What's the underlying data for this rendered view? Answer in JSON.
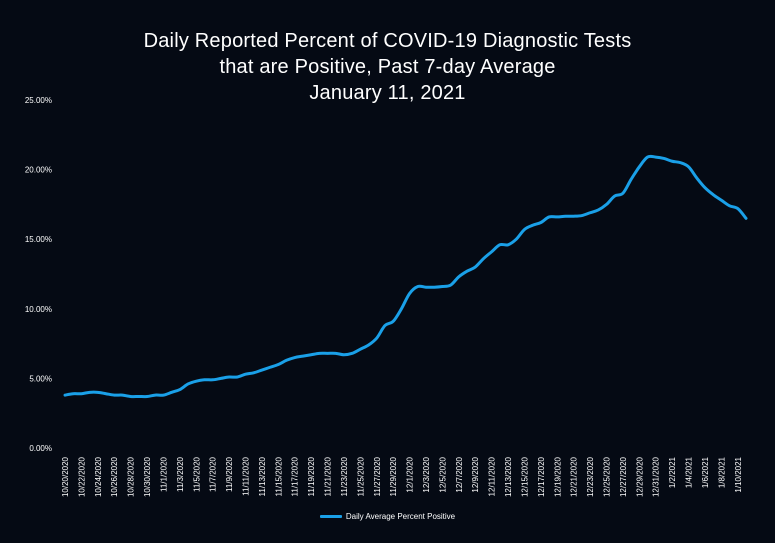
{
  "chart_data": {
    "type": "line",
    "title_lines": [
      "Daily Reported Percent of COVID-19 Diagnostic Tests",
      "that are Positive, Past 7-day Average",
      "January 11, 2021"
    ],
    "xlabel": "",
    "ylabel": "",
    "ylim": [
      0,
      25
    ],
    "yticks": [
      0,
      5,
      10,
      15,
      20,
      25
    ],
    "ytick_labels": [
      "0.00%",
      "5.00%",
      "10.00%",
      "15.00%",
      "20.00%",
      "25.00%"
    ],
    "x_tick_labels": [
      "10/20/2020",
      "10/22/2020",
      "10/24/2020",
      "10/26/2020",
      "10/28/2020",
      "10/30/2020",
      "11/1/2020",
      "11/3/2020",
      "11/5/2020",
      "11/7/2020",
      "11/9/2020",
      "11/11/2020",
      "11/13/2020",
      "11/15/2020",
      "11/17/2020",
      "11/19/2020",
      "11/21/2020",
      "11/23/2020",
      "11/25/2020",
      "11/27/2020",
      "11/29/2020",
      "12/1/2020",
      "12/3/2020",
      "12/5/2020",
      "12/7/2020",
      "12/9/2020",
      "12/11/2020",
      "12/13/2020",
      "12/15/2020",
      "12/17/2020",
      "12/19/2020",
      "12/21/2020",
      "12/23/2020",
      "12/25/2020",
      "12/27/2020",
      "12/29/2020",
      "12/31/2020",
      "1/2/2021",
      "1/4/2021",
      "1/6/2021",
      "1/8/2021",
      "1/10/2021"
    ],
    "x_start": "10/20/2020",
    "x_end": "1/11/2021",
    "series": [
      {
        "name": "Daily Average Percent Positive",
        "color": "#1aa0e8",
        "values": [
          3.8,
          3.9,
          3.9,
          4.0,
          4.0,
          3.9,
          3.8,
          3.8,
          3.7,
          3.7,
          3.7,
          3.8,
          3.8,
          4.0,
          4.2,
          4.6,
          4.8,
          4.9,
          4.9,
          5.0,
          5.1,
          5.1,
          5.3,
          5.4,
          5.6,
          5.8,
          6.0,
          6.3,
          6.5,
          6.6,
          6.7,
          6.8,
          6.8,
          6.8,
          6.7,
          6.8,
          7.1,
          7.4,
          7.9,
          8.8,
          9.1,
          10.0,
          11.1,
          11.6,
          11.55,
          11.55,
          11.6,
          11.7,
          12.3,
          12.7,
          13.0,
          13.6,
          14.1,
          14.6,
          14.6,
          15.0,
          15.7,
          16.0,
          16.2,
          16.6,
          16.6,
          16.65,
          16.65,
          16.7,
          16.9,
          17.1,
          17.5,
          18.1,
          18.3,
          19.3,
          20.2,
          20.9,
          20.9,
          20.8,
          20.6,
          20.5,
          20.2,
          19.4,
          18.7,
          18.2,
          17.8,
          17.4,
          17.2,
          16.5
        ]
      }
    ],
    "grid": false,
    "legend_position": "bottom-center"
  }
}
